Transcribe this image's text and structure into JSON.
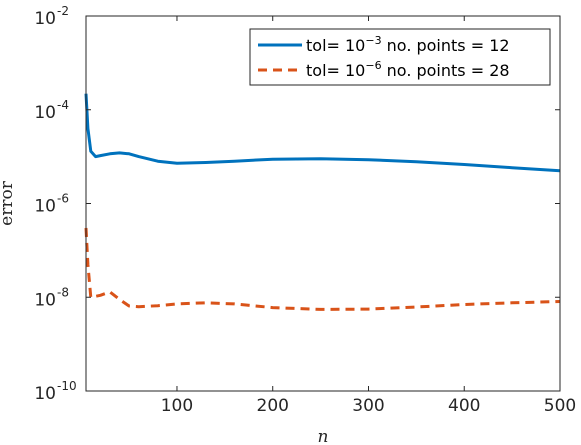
{
  "chart_data": {
    "type": "line",
    "title": "",
    "xlabel": "n",
    "ylabel": "error",
    "xlim": [
      5,
      500
    ],
    "ylim": [
      1e-10,
      0.01
    ],
    "yscale": "log",
    "grid": false,
    "legend_position": "top-right",
    "x_ticks": [
      100,
      200,
      300,
      400,
      500
    ],
    "x_tick_labels": [
      "100",
      "200",
      "300",
      "400",
      "500"
    ],
    "y_ticks": [
      {
        "value": 1e-10,
        "base": "10",
        "exp": "-10"
      },
      {
        "value": 1e-08,
        "base": "10",
        "exp": "-8"
      },
      {
        "value": 1e-06,
        "base": "10",
        "exp": "-6"
      },
      {
        "value": 0.0001,
        "base": "10",
        "exp": "-4"
      },
      {
        "value": 0.01,
        "base": "10",
        "exp": "-2"
      }
    ],
    "series": [
      {
        "name": "tol= 10^-3 no. points = 12",
        "legend_prefix": "tol= 10",
        "legend_exp": "−3",
        "legend_suffix": " no. points = 12",
        "color": "#0072BD",
        "style": "solid",
        "x": [
          5,
          7,
          10,
          15,
          20,
          30,
          40,
          50,
          60,
          80,
          100,
          130,
          160,
          200,
          250,
          300,
          350,
          400,
          450,
          500
        ],
        "y": [
          0.00022,
          4e-05,
          1.3e-05,
          1e-05,
          1.05e-05,
          1.15e-05,
          1.2e-05,
          1.15e-05,
          1e-05,
          8e-06,
          7.2e-06,
          7.5e-06,
          8e-06,
          8.8e-06,
          9e-06,
          8.6e-06,
          7.8e-06,
          6.8e-06,
          5.8e-06,
          5e-06
        ]
      },
      {
        "name": "tol= 10^-6 no. points = 28",
        "legend_prefix": "tol= 10",
        "legend_exp": "−6",
        "legend_suffix": " no. points = 28",
        "color": "#D95319",
        "style": "dashed",
        "x": [
          5,
          7,
          10,
          15,
          20,
          30,
          40,
          50,
          60,
          80,
          100,
          130,
          160,
          200,
          250,
          300,
          350,
          400,
          450,
          500
        ],
        "y": [
          3e-07,
          5e-08,
          1e-08,
          1.05e-08,
          1.1e-08,
          1.3e-08,
          9e-09,
          6.5e-09,
          6.3e-09,
          6.6e-09,
          7.2e-09,
          7.6e-09,
          7.2e-09,
          6e-09,
          5.5e-09,
          5.6e-09,
          6.2e-09,
          7e-09,
          7.6e-09,
          8.1e-09
        ]
      }
    ]
  }
}
